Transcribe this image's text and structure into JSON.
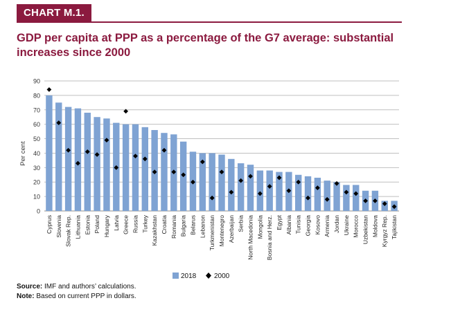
{
  "header": {
    "tag": "CHART M.1.",
    "title": "GDP per capita at PPP as a percentage of the G7 average: substantial increases since 2000"
  },
  "notes": {
    "source_label": "Source:",
    "source_text": "IMF and authors’ calculations.",
    "note_label": "Note:",
    "note_text": "Based on current PPP in dollars."
  },
  "colors": {
    "accent": "#8b1a3f",
    "bar_2018": "#7fa3d3",
    "marker_2000": "#000000",
    "grid": "#bfbfbf"
  },
  "chart_data": {
    "type": "bar",
    "ylabel": "Per cent",
    "ylim": [
      0,
      90
    ],
    "yticks": [
      0,
      10,
      20,
      30,
      40,
      50,
      60,
      70,
      80,
      90
    ],
    "grid": true,
    "legend_position": "bottom",
    "categories": [
      "Cyprus",
      "Slovenia",
      "Slovak Rep.",
      "Lithuania",
      "Estonia",
      "Poland",
      "Hungary",
      "Latvia",
      "Greece",
      "Russia",
      "Turkey",
      "Kazakhstan",
      "Croatia",
      "Romania",
      "Bulgaria",
      "Belarus",
      "Lebanon",
      "Turkmenistan",
      "Montenegro",
      "Azerbaijan",
      "Serbia",
      "North Macedonia",
      "Mongolia",
      "Bosnia and Herz.",
      "Egypt",
      "Albania",
      "Tunisia",
      "Georgia",
      "Kosovo",
      "Armenia",
      "Jordan",
      "Ukraine",
      "Morocco",
      "Uzbekistan",
      "Moldova",
      "Kyrgyz Rep.",
      "Tajikistan"
    ],
    "series": [
      {
        "name": "2018",
        "kind": "bar",
        "color": "#7fa3d3",
        "values": [
          80,
          75,
          72,
          71,
          68,
          65,
          64,
          61,
          60,
          60,
          58,
          56,
          54,
          53,
          48,
          41,
          40,
          40,
          39,
          36,
          33,
          32,
          28,
          28,
          27,
          27,
          25,
          24,
          23,
          21,
          20,
          18,
          18,
          14,
          14,
          7,
          7
        ]
      },
      {
        "name": "2000",
        "kind": "marker",
        "color": "#000000",
        "values": [
          84,
          61,
          42,
          33,
          41,
          39,
          49,
          30,
          69,
          38,
          36,
          27,
          42,
          27,
          25,
          20,
          34,
          9,
          27,
          13,
          21,
          24,
          12,
          17,
          23,
          14,
          20,
          9,
          16,
          8,
          19,
          13,
          12,
          7,
          7,
          5,
          3
        ]
      }
    ]
  }
}
